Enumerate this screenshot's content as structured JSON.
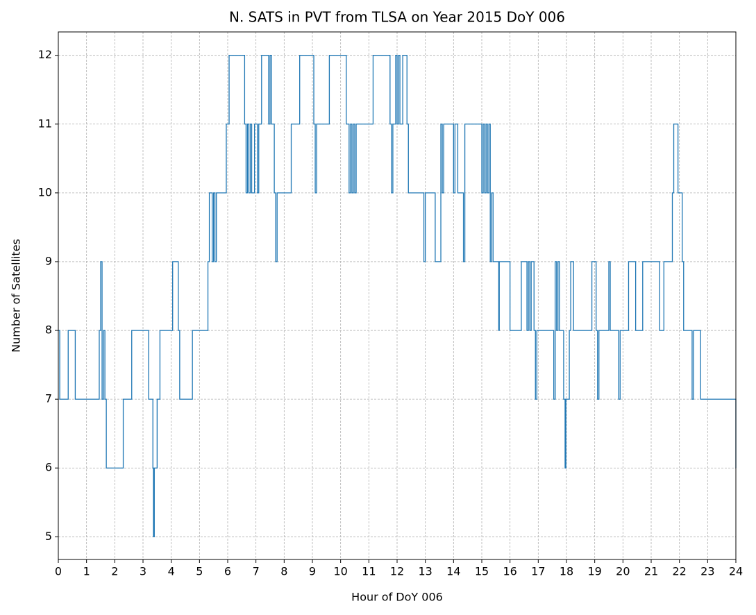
{
  "chart_data": {
    "type": "line",
    "title": "N. SATS in PVT from TLSA on Year 2015 DoY 006",
    "x_label": "Hour of DoY 006",
    "y_label": "Number of Satellites",
    "step": "post",
    "grid": true,
    "xlim": [
      0,
      24
    ],
    "ylim": [
      4.67,
      12.34
    ],
    "xticks": [
      0,
      1,
      2,
      3,
      4,
      5,
      6,
      7,
      8,
      9,
      10,
      11,
      12,
      13,
      14,
      15,
      16,
      17,
      18,
      19,
      20,
      21,
      22,
      23,
      24
    ],
    "yticks": [
      5,
      6,
      7,
      8,
      9,
      10,
      11,
      12
    ],
    "series": [
      {
        "color": "#1f77b4",
        "x": [
          0,
          0.05,
          0.35,
          0.6,
          1.45,
          1.5,
          1.55,
          1.6,
          1.65,
          1.7,
          2.3,
          2.6,
          3.2,
          3.35,
          3.37,
          3.4,
          3.5,
          3.6,
          4.05,
          4.25,
          4.3,
          4.75,
          5.3,
          5.35,
          5.45,
          5.5,
          5.55,
          5.6,
          5.95,
          6.05,
          6.6,
          6.65,
          6.7,
          6.75,
          6.8,
          6.85,
          6.95,
          7.05,
          7.1,
          7.2,
          7.45,
          7.5,
          7.55,
          7.65,
          7.7,
          7.75,
          8.25,
          8.55,
          9.05,
          9.1,
          9.15,
          9.6,
          10.2,
          10.3,
          10.35,
          10.4,
          10.45,
          10.5,
          10.55,
          11.15,
          11.75,
          11.8,
          11.85,
          11.95,
          12.0,
          12.05,
          12.1,
          12.2,
          12.35,
          12.4,
          12.95,
          13.0,
          13.35,
          13.55,
          13.6,
          13.65,
          14.0,
          14.05,
          14.15,
          14.35,
          14.4,
          15.0,
          15.05,
          15.1,
          15.15,
          15.2,
          15.25,
          15.3,
          15.35,
          15.4,
          15.6,
          15.62,
          16.0,
          16.4,
          16.6,
          16.65,
          16.7,
          16.75,
          16.85,
          16.9,
          16.95,
          17.55,
          17.6,
          17.65,
          17.7,
          17.75,
          17.9,
          17.95,
          17.98,
          18.1,
          18.15,
          18.25,
          18.9,
          19.05,
          19.1,
          19.15,
          19.5,
          19.55,
          19.85,
          19.9,
          20.2,
          20.45,
          20.7,
          21.3,
          21.45,
          21.75,
          21.8,
          21.95,
          22.1,
          22.15,
          22.45,
          22.5,
          22.75,
          24
        ],
        "values": [
          8,
          7,
          8,
          7,
          8,
          9,
          7,
          8,
          7,
          6,
          7,
          8,
          7,
          6,
          5,
          6,
          7,
          8,
          9,
          8,
          7,
          8,
          9,
          10,
          9,
          10,
          9,
          10,
          11,
          12,
          11,
          10,
          11,
          10,
          11,
          10,
          11,
          10,
          11,
          12,
          11,
          12,
          11,
          10,
          9,
          10,
          11,
          12,
          11,
          10,
          11,
          12,
          11,
          10,
          11,
          10,
          11,
          10,
          11,
          12,
          11,
          10,
          11,
          12,
          11,
          12,
          11,
          12,
          11,
          10,
          9,
          10,
          9,
          11,
          10,
          11,
          10,
          11,
          10,
          9,
          11,
          10,
          11,
          10,
          11,
          10,
          11,
          9,
          10,
          9,
          8,
          9,
          8,
          9,
          8,
          9,
          8,
          9,
          8,
          7,
          8,
          7,
          9,
          8,
          9,
          8,
          7,
          6,
          7,
          8,
          9,
          8,
          9,
          8,
          7,
          8,
          9,
          8,
          7,
          8,
          9,
          8,
          9,
          8,
          9,
          10,
          11,
          10,
          9,
          8,
          7,
          8,
          7,
          6
        ]
      }
    ]
  }
}
